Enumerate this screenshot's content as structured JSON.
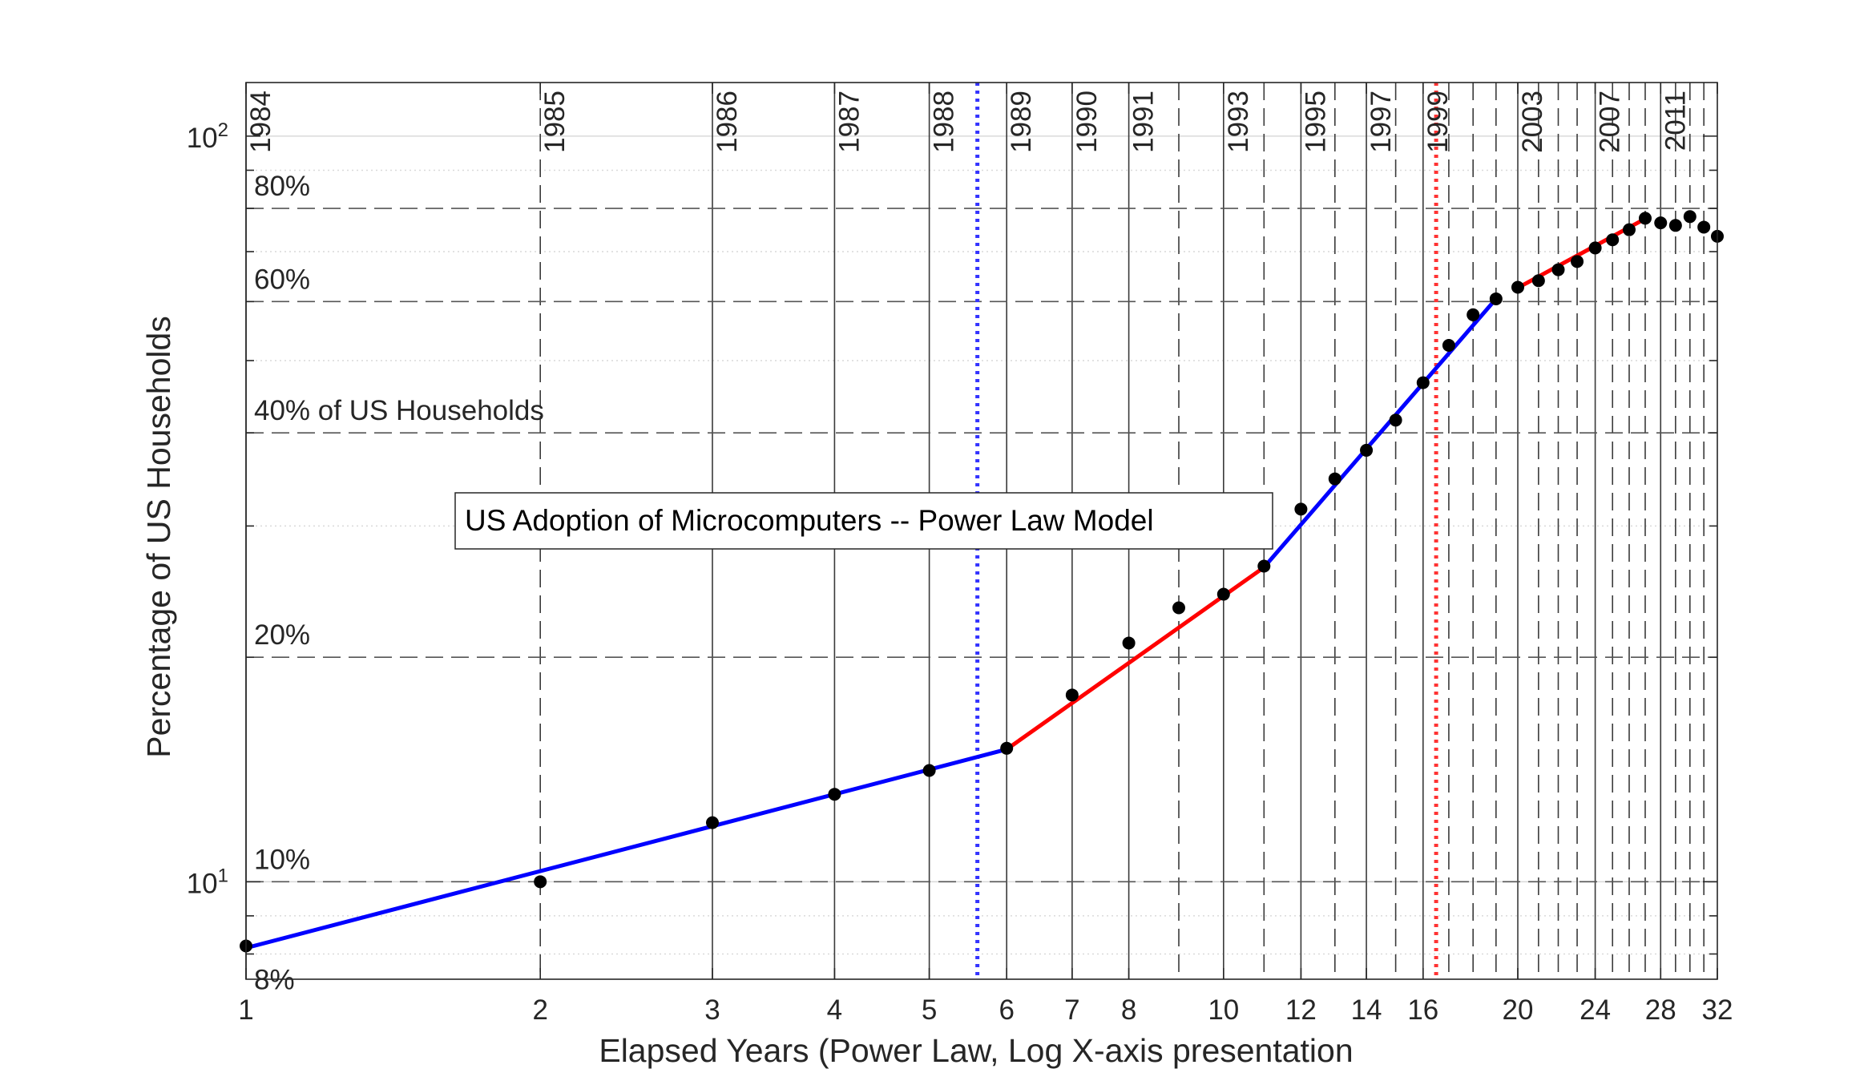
{
  "chart_data": {
    "type": "scatter",
    "title": "US Adoption of Microcomputers -- Power Law Model",
    "xlabel": "Elapsed Years (Power Law, Log X-axis presentation",
    "ylabel": "Percentage of US Households",
    "x_scale": "log",
    "y_scale": "log",
    "xlim": [
      1,
      32
    ],
    "ylim": [
      7.4,
      118
    ],
    "x_ticks": [
      1,
      2,
      3,
      4,
      5,
      6,
      7,
      8,
      10,
      12,
      14,
      16,
      20,
      24,
      28,
      32
    ],
    "y_ticks": [
      {
        "value": 10,
        "base": "10",
        "exp": "1"
      },
      {
        "value": 100,
        "base": "10",
        "exp": "2"
      }
    ],
    "colors": {
      "data_points": "#000000",
      "blue_fit": "#0000ff",
      "red_fit": "#ff0000",
      "blue_marker": "#3333ff",
      "red_marker": "#ff3333",
      "grid": "#d9d9d9",
      "axes": "#262626"
    },
    "points": [
      {
        "x": 1,
        "y": 8.2
      },
      {
        "x": 2,
        "y": 10.0
      },
      {
        "x": 3,
        "y": 12.0
      },
      {
        "x": 4,
        "y": 13.1
      },
      {
        "x": 5,
        "y": 14.1
      },
      {
        "x": 6,
        "y": 15.1
      },
      {
        "x": 7,
        "y": 17.8
      },
      {
        "x": 8,
        "y": 20.9
      },
      {
        "x": 9,
        "y": 23.3
      },
      {
        "x": 10,
        "y": 24.3
      },
      {
        "x": 11,
        "y": 26.5
      },
      {
        "x": 12,
        "y": 31.6
      },
      {
        "x": 13,
        "y": 34.7
      },
      {
        "x": 14,
        "y": 37.9
      },
      {
        "x": 15,
        "y": 41.6
      },
      {
        "x": 16,
        "y": 46.7
      },
      {
        "x": 17,
        "y": 52.4
      },
      {
        "x": 18,
        "y": 57.6
      },
      {
        "x": 19,
        "y": 60.5
      },
      {
        "x": 20,
        "y": 62.7
      },
      {
        "x": 21,
        "y": 64.0
      },
      {
        "x": 22,
        "y": 66.2
      },
      {
        "x": 23,
        "y": 67.9
      },
      {
        "x": 24,
        "y": 70.8
      },
      {
        "x": 25,
        "y": 72.6
      },
      {
        "x": 26,
        "y": 74.9
      },
      {
        "x": 27,
        "y": 77.6
      },
      {
        "x": 28,
        "y": 76.5
      },
      {
        "x": 29,
        "y": 75.9
      },
      {
        "x": 30,
        "y": 78.0
      },
      {
        "x": 31,
        "y": 75.5
      },
      {
        "x": 32,
        "y": 73.4
      }
    ],
    "fit_segments": [
      {
        "color": "blue",
        "points": [
          [
            1,
            8.15
          ],
          [
            6,
            15.05
          ]
        ]
      },
      {
        "color": "red",
        "points": [
          [
            6,
            15.05
          ],
          [
            11,
            26.4
          ]
        ]
      },
      {
        "color": "blue",
        "points": [
          [
            11,
            26.4
          ],
          [
            19,
            60.5
          ]
        ]
      },
      {
        "color": "red",
        "points": [
          [
            20,
            62.6
          ],
          [
            27,
            77.5
          ]
        ]
      }
    ],
    "event_lines": [
      {
        "x": 5.6,
        "color": "blue",
        "style": "dotted"
      },
      {
        "x": 16.5,
        "color": "red",
        "style": "dotted"
      }
    ],
    "year_lines": [
      {
        "x": 1,
        "style": "solid"
      },
      {
        "x": 2,
        "style": "dash"
      },
      {
        "x": 3,
        "style": "solid"
      },
      {
        "x": 4,
        "style": "solid"
      },
      {
        "x": 5,
        "style": "solid"
      },
      {
        "x": 6,
        "style": "solid"
      },
      {
        "x": 7,
        "style": "solid"
      },
      {
        "x": 8,
        "style": "solid"
      },
      {
        "x": 9,
        "style": "dash"
      },
      {
        "x": 10,
        "style": "solid"
      },
      {
        "x": 11,
        "style": "dash"
      },
      {
        "x": 12,
        "style": "solid"
      },
      {
        "x": 13,
        "style": "dash"
      },
      {
        "x": 14,
        "style": "solid"
      },
      {
        "x": 15,
        "style": "dash"
      },
      {
        "x": 16,
        "style": "solid"
      },
      {
        "x": 17,
        "style": "dash"
      },
      {
        "x": 18,
        "style": "dash"
      },
      {
        "x": 19,
        "style": "dash"
      },
      {
        "x": 20,
        "style": "solid"
      },
      {
        "x": 21,
        "style": "dash"
      },
      {
        "x": 22,
        "style": "dash"
      },
      {
        "x": 23,
        "style": "dash"
      },
      {
        "x": 24,
        "style": "solid"
      },
      {
        "x": 25,
        "style": "dash"
      },
      {
        "x": 26,
        "style": "dash"
      },
      {
        "x": 27,
        "style": "dash"
      },
      {
        "x": 28,
        "style": "solid"
      },
      {
        "x": 29,
        "style": "dash"
      },
      {
        "x": 30,
        "style": "dash"
      },
      {
        "x": 31,
        "style": "dash"
      }
    ],
    "year_labels": [
      {
        "x": 1,
        "text": "1984"
      },
      {
        "x": 2,
        "text": "1985"
      },
      {
        "x": 3,
        "text": "1986"
      },
      {
        "x": 4,
        "text": "1987"
      },
      {
        "x": 5,
        "text": "1988"
      },
      {
        "x": 6,
        "text": "1989"
      },
      {
        "x": 7,
        "text": "1990"
      },
      {
        "x": 8,
        "text": "1991"
      },
      {
        "x": 10,
        "text": "1993"
      },
      {
        "x": 12,
        "text": "1995"
      },
      {
        "x": 14,
        "text": "1997"
      },
      {
        "x": 16,
        "text": "1999"
      },
      {
        "x": 20,
        "text": "2003"
      },
      {
        "x": 24,
        "text": "2007"
      },
      {
        "x": 28,
        "text": "2011"
      }
    ],
    "pct_lines": [
      {
        "y": 10,
        "label": "10%"
      },
      {
        "y": 20,
        "label": "20%"
      },
      {
        "y": 40,
        "label": "40% of US Households"
      },
      {
        "y": 60,
        "label": "60%"
      },
      {
        "y": 80,
        "label": "80%"
      }
    ],
    "pct_extra_labels": [
      {
        "y": 8,
        "label": "8%"
      }
    ],
    "minor_grid_y": [
      8,
      9,
      30,
      50,
      70,
      90
    ]
  }
}
